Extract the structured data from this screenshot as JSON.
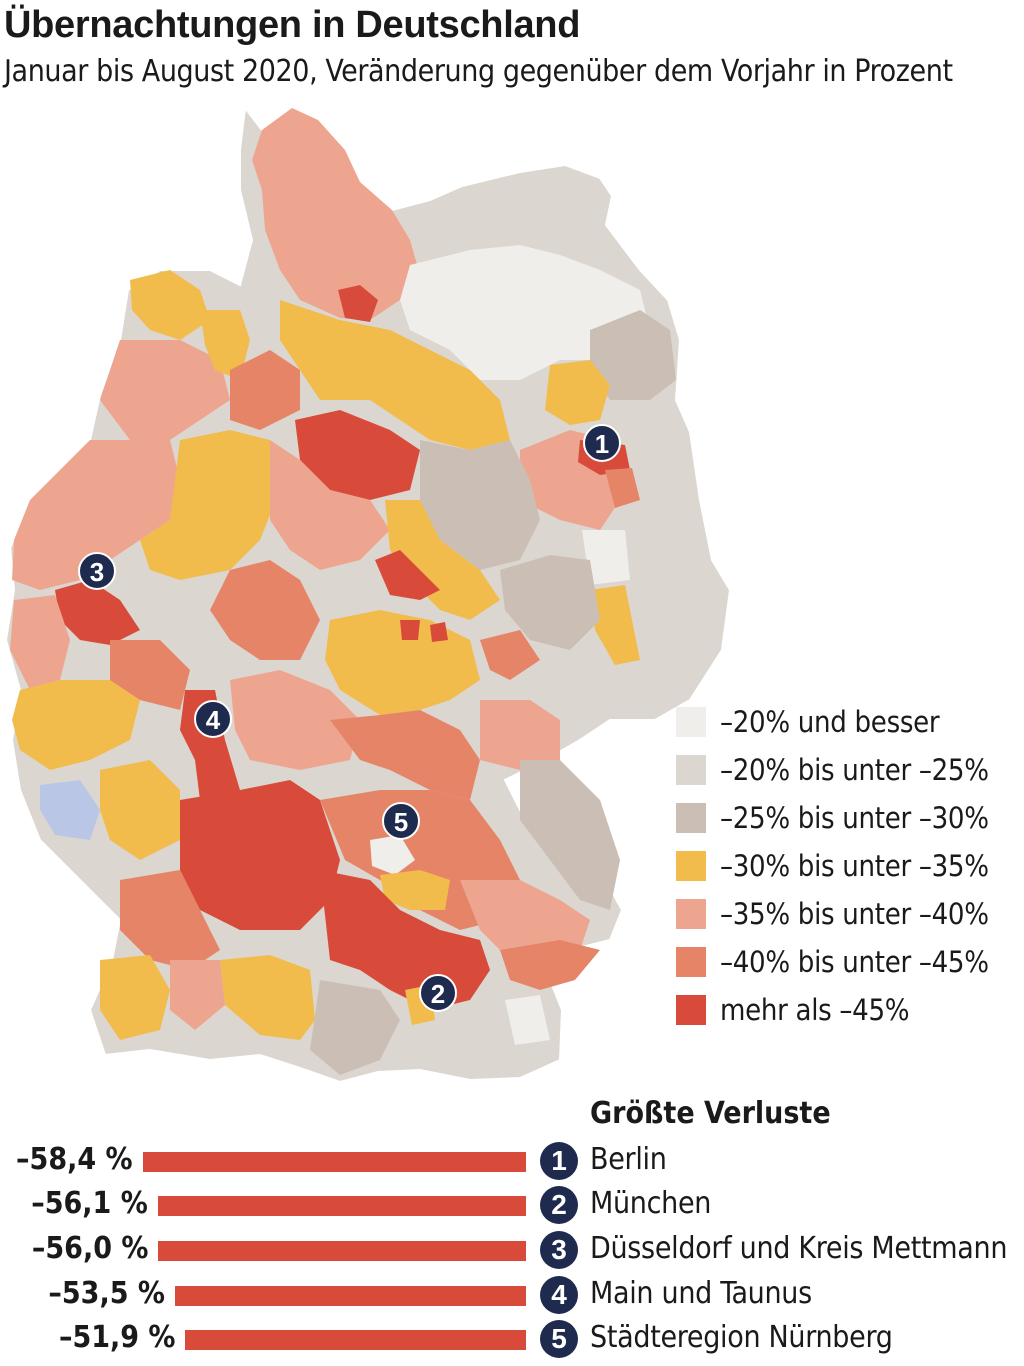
{
  "title": "Übernachtungen in Deutschland",
  "subtitle": "Januar bis August 2020, Veränderung gegenüber dem Vorjahr in Prozent",
  "colors": {
    "c1": "#efeeea",
    "c2": "#dcd6d0",
    "c3": "#cbbfb5",
    "c4": "#f1bc4b",
    "c5": "#eda590",
    "c6": "#e68468",
    "c7": "#d84b3a",
    "other": "#b9c6e6",
    "badge": "#1f2a4f"
  },
  "legend": [
    {
      "label": "–20% und besser",
      "color": "#efeeea"
    },
    {
      "label": "–20% bis unter –25%",
      "color": "#dcd6d0"
    },
    {
      "label": "–25% bis unter –30%",
      "color": "#cbbfb5"
    },
    {
      "label": "–30% bis unter –35%",
      "color": "#f1bc4b"
    },
    {
      "label": "–35% bis unter –40%",
      "color": "#eda590"
    },
    {
      "label": "–40% bis unter –45%",
      "color": "#e68468"
    },
    {
      "label": "mehr als –45%",
      "color": "#d84b3a"
    }
  ],
  "map_markers": [
    {
      "number": "1"
    },
    {
      "number": "2"
    },
    {
      "number": "3"
    },
    {
      "number": "4"
    },
    {
      "number": "5"
    }
  ],
  "losses": {
    "title": "Größte Verluste",
    "items": [
      {
        "number": "1",
        "name": "Berlin",
        "value_label": "–58,4 %",
        "value": -58.4
      },
      {
        "number": "2",
        "name": "München",
        "value_label": "–56,1 %",
        "value": -56.1
      },
      {
        "number": "3",
        "name": "Düsseldorf und Kreis Mettmann",
        "value_label": "–56,0 %",
        "value": -56.0
      },
      {
        "number": "4",
        "name": "Main und Taunus",
        "value_label": "–53,5 %",
        "value": -53.5
      },
      {
        "number": "5",
        "name": "Städteregion Nürnberg",
        "value_label": "–51,9 %",
        "value": -51.9
      }
    ]
  }
}
